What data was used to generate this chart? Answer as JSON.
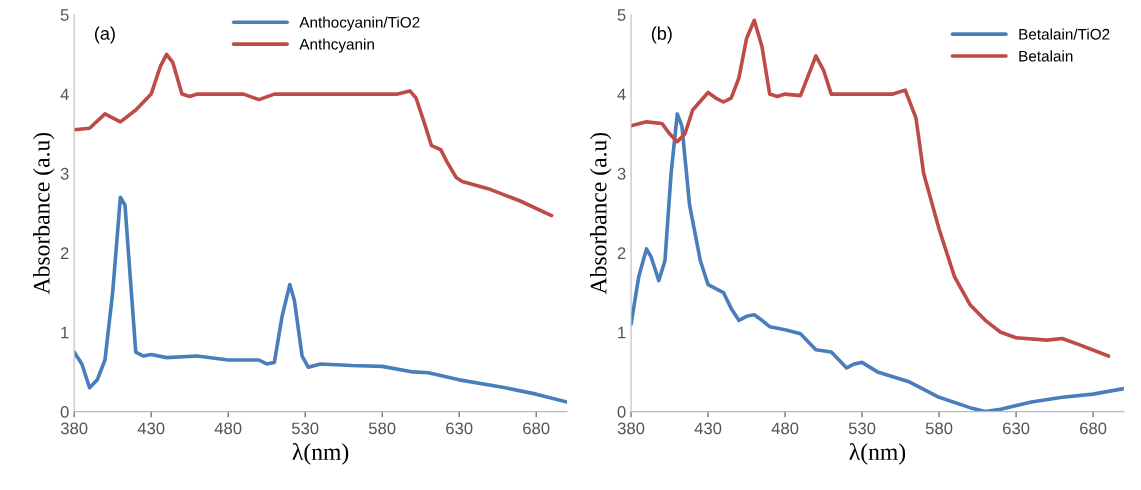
{
  "chart_data": [
    {
      "type": "line",
      "xlabel": "λ(nm)",
      "ylabel": "Absorbance (a.u)",
      "annotations": [
        "(a)"
      ],
      "xlim": [
        380,
        700
      ],
      "xticks": [
        380,
        430,
        480,
        530,
        580,
        630,
        680
      ],
      "ylim": [
        0,
        5
      ],
      "yticks": [
        0,
        1,
        2,
        3,
        4,
        5
      ],
      "grid": false,
      "legend": "top",
      "marker": "none",
      "line_style": "solid",
      "series": [
        {
          "name": "Anthocyanin/TiO2",
          "color": "#4a7ebb",
          "x": [
            380,
            385,
            390,
            395,
            400,
            405,
            410,
            413,
            416,
            420,
            425,
            430,
            440,
            460,
            480,
            500,
            505,
            510,
            515,
            520,
            523,
            528,
            532,
            540,
            560,
            580,
            600,
            610,
            630,
            660,
            680,
            700
          ],
          "values": [
            0.75,
            0.6,
            0.3,
            0.4,
            0.65,
            1.5,
            2.7,
            2.6,
            1.8,
            0.75,
            0.7,
            0.72,
            0.68,
            0.7,
            0.65,
            0.65,
            0.6,
            0.62,
            1.2,
            1.6,
            1.4,
            0.7,
            0.56,
            0.6,
            0.58,
            0.57,
            0.5,
            0.49,
            0.4,
            0.3,
            0.22,
            0.12
          ]
        },
        {
          "name": "Anthcyanin",
          "color": "#be4b48",
          "x": [
            380,
            390,
            400,
            405,
            410,
            420,
            430,
            436,
            440,
            444,
            450,
            455,
            460,
            490,
            500,
            510,
            520,
            590,
            598,
            602,
            608,
            612,
            618,
            622,
            628,
            632,
            650,
            670,
            690
          ],
          "values": [
            3.55,
            3.57,
            3.75,
            3.7,
            3.65,
            3.8,
            4.0,
            4.35,
            4.5,
            4.4,
            4.0,
            3.97,
            4.0,
            4.0,
            3.93,
            4.0,
            4.0,
            4.0,
            4.04,
            3.95,
            3.6,
            3.35,
            3.3,
            3.15,
            2.95,
            2.9,
            2.8,
            2.65,
            2.47
          ]
        }
      ]
    },
    {
      "type": "line",
      "xlabel": "λ(nm)",
      "ylabel": "Absorbance (a.u)",
      "annotations": [
        "(b)"
      ],
      "xlim": [
        380,
        700
      ],
      "xticks": [
        380,
        430,
        480,
        530,
        580,
        630,
        680
      ],
      "ylim": [
        0,
        5
      ],
      "yticks": [
        0,
        1,
        2,
        3,
        4,
        5
      ],
      "grid": false,
      "legend": "top right",
      "marker": "none",
      "line_style": "solid",
      "series": [
        {
          "name": "Betalain/TiO2",
          "color": "#4a7ebb",
          "x": [
            380,
            385,
            390,
            393,
            398,
            402,
            406,
            410,
            413,
            418,
            425,
            430,
            440,
            445,
            450,
            455,
            460,
            465,
            470,
            480,
            490,
            500,
            510,
            515,
            520,
            525,
            530,
            540,
            560,
            580,
            600,
            610,
            620,
            640,
            660,
            680,
            700
          ],
          "values": [
            1.1,
            1.7,
            2.05,
            1.95,
            1.65,
            1.9,
            3.0,
            3.75,
            3.6,
            2.6,
            1.9,
            1.6,
            1.5,
            1.3,
            1.15,
            1.2,
            1.22,
            1.15,
            1.07,
            1.03,
            0.98,
            0.78,
            0.75,
            0.65,
            0.55,
            0.6,
            0.62,
            0.5,
            0.38,
            0.18,
            0.05,
            0.0,
            0.03,
            0.12,
            0.18,
            0.22,
            0.29
          ]
        },
        {
          "name": "Betalain",
          "color": "#be4b48",
          "x": [
            380,
            390,
            400,
            405,
            410,
            415,
            420,
            430,
            435,
            440,
            445,
            450,
            455,
            460,
            465,
            470,
            475,
            480,
            490,
            500,
            505,
            510,
            520,
            550,
            558,
            565,
            570,
            580,
            590,
            600,
            610,
            620,
            630,
            650,
            660,
            670,
            690
          ],
          "values": [
            3.6,
            3.65,
            3.63,
            3.5,
            3.4,
            3.5,
            3.8,
            4.02,
            3.95,
            3.9,
            3.95,
            4.2,
            4.7,
            4.93,
            4.6,
            4.0,
            3.97,
            4.0,
            3.98,
            4.48,
            4.3,
            4.0,
            4.0,
            4.0,
            4.05,
            3.7,
            3.0,
            2.3,
            1.7,
            1.35,
            1.15,
            1.0,
            0.93,
            0.9,
            0.92,
            0.85,
            0.7
          ]
        }
      ]
    }
  ]
}
